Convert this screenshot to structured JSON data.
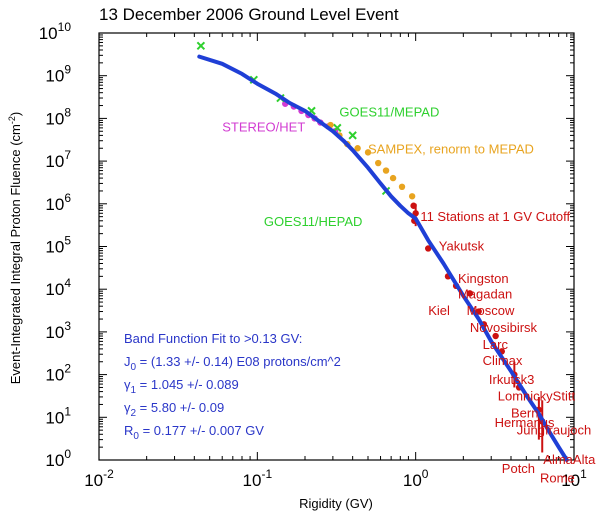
{
  "chart_data": {
    "type": "scatter",
    "title": "13 December 2006 Ground Level Event",
    "xlabel": "Rigidity (GV)",
    "ylabel": "Event-Integrated Integral Proton Fluence (cm",
    "ylabel_sup": "-2",
    "ylabel_end": ")",
    "x_scale": "log",
    "y_scale": "log",
    "xlim": [
      0.01,
      10
    ],
    "ylim": [
      1,
      10000000000
    ],
    "x_ticks": [
      {
        "value": 0.01,
        "base": "10",
        "exp": "-2"
      },
      {
        "value": 0.1,
        "base": "10",
        "exp": "-1"
      },
      {
        "value": 1,
        "base": "10",
        "exp": "0"
      },
      {
        "value": 10,
        "base": "10",
        "exp": "1"
      }
    ],
    "y_ticks": [
      {
        "value": 1,
        "base": "10",
        "exp": "0"
      },
      {
        "value": 10,
        "base": "10",
        "exp": "1"
      },
      {
        "value": 100,
        "base": "10",
        "exp": "2"
      },
      {
        "value": 1000,
        "base": "10",
        "exp": "3"
      },
      {
        "value": 10000,
        "base": "10",
        "exp": "4"
      },
      {
        "value": 100000,
        "base": "10",
        "exp": "5"
      },
      {
        "value": 1000000,
        "base": "10",
        "exp": "6"
      },
      {
        "value": 10000000,
        "base": "10",
        "exp": "7"
      },
      {
        "value": 100000000,
        "base": "10",
        "exp": "8"
      },
      {
        "value": 1000000000,
        "base": "10",
        "exp": "9"
      },
      {
        "value": 10000000000,
        "base": "10",
        "exp": "10"
      }
    ],
    "grid": false,
    "colors": {
      "fit": "#1f3fd6",
      "stereo": "#d23cd2",
      "goes": "#2ed02e",
      "sampex": "#e8a420",
      "stations": "#cc1111",
      "fit_text": "#2a36c8"
    },
    "fit_curve": {
      "x": [
        0.043,
        0.06,
        0.08,
        0.1,
        0.13,
        0.16,
        0.2,
        0.25,
        0.3,
        0.35,
        0.4,
        0.5,
        0.6,
        0.7,
        0.8,
        0.9,
        1.0,
        1.2,
        1.5,
        2.0,
        2.5,
        3.0,
        4.0,
        5.0,
        6.0,
        7.0,
        8.0,
        9.0
      ],
      "y": [
        2800000000,
        1900000000,
        1100000000,
        650000000,
        380000000,
        230000000,
        150000000,
        82000000,
        50000000,
        30000000,
        18000000,
        7000000,
        3000000,
        1500000,
        900000,
        600000,
        450000,
        140000,
        40000,
        7000,
        2000,
        600,
        120,
        33,
        12,
        4.5,
        2.0,
        1.0
      ]
    },
    "series": [
      {
        "name": "STEREO/HET",
        "marker": "circle",
        "points": [
          [
            0.15,
            220000000
          ],
          [
            0.17,
            190000000
          ],
          [
            0.19,
            150000000
          ],
          [
            0.21,
            120000000
          ],
          [
            0.23,
            100000000
          ],
          [
            0.25,
            80000000
          ],
          [
            0.28,
            65000000
          ],
          [
            0.31,
            50000000
          ]
        ]
      },
      {
        "name": "GOES11/MEPAD",
        "marker": "x",
        "points": [
          [
            0.044,
            5000000000
          ],
          [
            0.095,
            800000000
          ],
          [
            0.14,
            300000000
          ],
          [
            0.22,
            150000000
          ],
          [
            0.32,
            60000000
          ],
          [
            0.4,
            40000000
          ]
        ]
      },
      {
        "name": "SAMPEX, renorm to MEPAD",
        "marker": "circle",
        "points": [
          [
            0.29,
            70000000
          ],
          [
            0.33,
            40000000
          ],
          [
            0.37,
            25000000
          ],
          [
            0.43,
            20000000
          ],
          [
            0.5,
            16000000
          ],
          [
            0.58,
            9000000
          ],
          [
            0.65,
            6000000
          ],
          [
            0.72,
            4000000
          ],
          [
            0.82,
            2500000
          ],
          [
            0.95,
            1500000
          ]
        ]
      },
      {
        "name": "GOES11/HEPAD",
        "marker": "x",
        "points": [
          [
            0.65,
            2000000
          ]
        ]
      },
      {
        "name": "11 Stations at 1 GV Cutoff",
        "marker": "circle",
        "points": [
          [
            0.97,
            900000
          ],
          [
            1.0,
            600000
          ],
          [
            0.98,
            400000
          ],
          [
            1.2,
            90000
          ],
          [
            1.6,
            20000
          ],
          [
            1.8,
            12000
          ],
          [
            2.2,
            8000
          ],
          [
            2.5,
            3000
          ],
          [
            2.7,
            1500
          ],
          [
            3.2,
            800
          ],
          [
            3.5,
            350
          ],
          [
            4.2,
            100
          ],
          [
            4.5,
            50
          ],
          [
            6.0,
            15
          ],
          [
            6.3,
            8
          ]
        ],
        "error_bars": [
          {
            "x": 1.0,
            "y_low": 300000,
            "y_high": 1000000
          },
          {
            "x": 4.2,
            "y_low": 50,
            "y_high": 200
          },
          {
            "x": 6.0,
            "y_low": 3,
            "y_high": 30
          },
          {
            "x": 6.3,
            "y_low": 1.5,
            "y_high": 25
          }
        ]
      }
    ],
    "annotations": [
      {
        "text": "STEREO/HET",
        "color": "#d23cd2",
        "x": 0.06,
        "y": 50000000
      },
      {
        "text": "GOES11/MEPAD",
        "color": "#2ed02e",
        "x": 0.33,
        "y": 110000000
      },
      {
        "text": "SAMPEX, renorm to MEPAD",
        "color": "#e8a420",
        "x": 0.5,
        "y": 15000000
      },
      {
        "text": "GOES11/HEPAD",
        "color": "#2ed02e",
        "x": 0.11,
        "y": 300000
      },
      {
        "text": "11 Stations at 1 GV Cutoff",
        "color": "#cc1111",
        "x": 1.07,
        "y": 400000
      }
    ],
    "station_labels": [
      {
        "text": "Yakutsk",
        "x": 1.4,
        "y": 80000
      },
      {
        "text": "Kingston",
        "x": 1.85,
        "y": 14000
      },
      {
        "text": "Magadan",
        "x": 1.85,
        "y": 6000
      },
      {
        "text": "Kiel",
        "x": 1.2,
        "y": 2500
      },
      {
        "text": "Moscow",
        "x": 2.1,
        "y": 2500
      },
      {
        "text": "Novosibirsk",
        "x": 2.2,
        "y": 1000
      },
      {
        "text": "Larc",
        "x": 2.65,
        "y": 400
      },
      {
        "text": "Climax",
        "x": 2.65,
        "y": 170
      },
      {
        "text": "Irkutsk3",
        "x": 2.9,
        "y": 60
      },
      {
        "text": "LomnickyStitt",
        "x": 3.3,
        "y": 25
      },
      {
        "text": "Bern",
        "x": 4.0,
        "y": 10
      },
      {
        "text": "Hermanus",
        "x": 3.15,
        "y": 6
      },
      {
        "text": "Jungfraujoch",
        "x": 4.35,
        "y": 4
      },
      {
        "text": "AlmaAlta",
        "x": 6.4,
        "y": 0.8
      },
      {
        "text": "Potch",
        "x": 3.5,
        "y": 0.5
      },
      {
        "text": "Rome",
        "x": 6.1,
        "y": 0.3
      }
    ],
    "fit_info": {
      "heading": "Band Function Fit to >0.13 GV:",
      "lines": [
        {
          "sym": "J",
          "sub": "0",
          "text": " = (1.33 +/- 0.14) E08 protons/cm^2"
        },
        {
          "sym": "γ",
          "sub": "1",
          "text": " = 1.045 +/- 0.089"
        },
        {
          "sym": "γ",
          "sub": "2",
          "text": " = 5.80 +/- 0.09"
        },
        {
          "sym": "R",
          "sub": "0",
          "text": " = 0.177 +/- 0.007 GV"
        }
      ]
    }
  }
}
